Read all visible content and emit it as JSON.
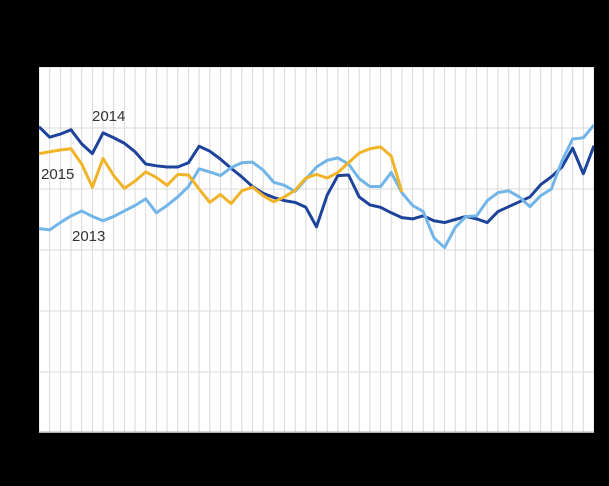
{
  "figure": {
    "background_color": "#000000",
    "plot_background_color": "#ffffff",
    "gridline_color": "#d9d9d9",
    "axis_line_color": "#b0b0b0",
    "label_text_color": "#333333"
  },
  "chart_data": {
    "type": "line",
    "title": "",
    "xlabel": "",
    "ylabel": "",
    "x_unit": "week",
    "x_range": [
      1,
      53
    ],
    "x_gridline_count": 53,
    "y_gridline_count": 7,
    "ylim": [
      0,
      6
    ],
    "grid": true,
    "legend_position": "inline-labels",
    "series": [
      {
        "name": "2014",
        "color": "#1d439b",
        "line_width": 3,
        "values": [
          5.02,
          4.85,
          4.9,
          4.97,
          4.74,
          4.58,
          4.92,
          4.84,
          4.75,
          4.61,
          4.41,
          4.38,
          4.36,
          4.36,
          4.43,
          4.7,
          4.62,
          4.49,
          4.34,
          4.2,
          4.04,
          3.93,
          3.86,
          3.81,
          3.78,
          3.7,
          3.38,
          3.9,
          4.22,
          4.23,
          3.87,
          3.74,
          3.7,
          3.61,
          3.53,
          3.51,
          3.56,
          3.48,
          3.45,
          3.5,
          3.55,
          3.51,
          3.45,
          3.63,
          3.71,
          3.79,
          3.87,
          4.07,
          4.2,
          4.36,
          4.67,
          4.25,
          4.71
        ]
      },
      {
        "name": "2013",
        "color": "#72b5e8",
        "line_width": 3,
        "values": [
          3.35,
          3.33,
          3.45,
          3.56,
          3.64,
          3.55,
          3.48,
          3.55,
          3.64,
          3.73,
          3.84,
          3.61,
          3.73,
          3.87,
          4.04,
          4.33,
          4.28,
          4.22,
          4.35,
          4.43,
          4.44,
          4.31,
          4.11,
          4.06,
          3.96,
          4.16,
          4.36,
          4.47,
          4.51,
          4.41,
          4.17,
          4.04,
          4.04,
          4.27,
          3.94,
          3.73,
          3.63,
          3.2,
          3.04,
          3.37,
          3.55,
          3.56,
          3.81,
          3.94,
          3.97,
          3.87,
          3.71,
          3.89,
          4.0,
          4.46,
          4.82,
          4.84,
          5.05
        ]
      },
      {
        "name": "2015",
        "color": "#f0b428",
        "line_width": 3,
        "values": [
          4.58,
          4.61,
          4.64,
          4.66,
          4.41,
          4.03,
          4.5,
          4.22,
          4.01,
          4.13,
          4.28,
          4.19,
          4.06,
          4.24,
          4.23,
          4.0,
          3.78,
          3.91,
          3.76,
          3.97,
          4.03,
          3.89,
          3.79,
          3.87,
          3.98,
          4.18,
          4.24,
          4.18,
          4.27,
          4.43,
          4.59,
          4.66,
          4.69,
          4.54,
          3.95
        ]
      }
    ]
  }
}
